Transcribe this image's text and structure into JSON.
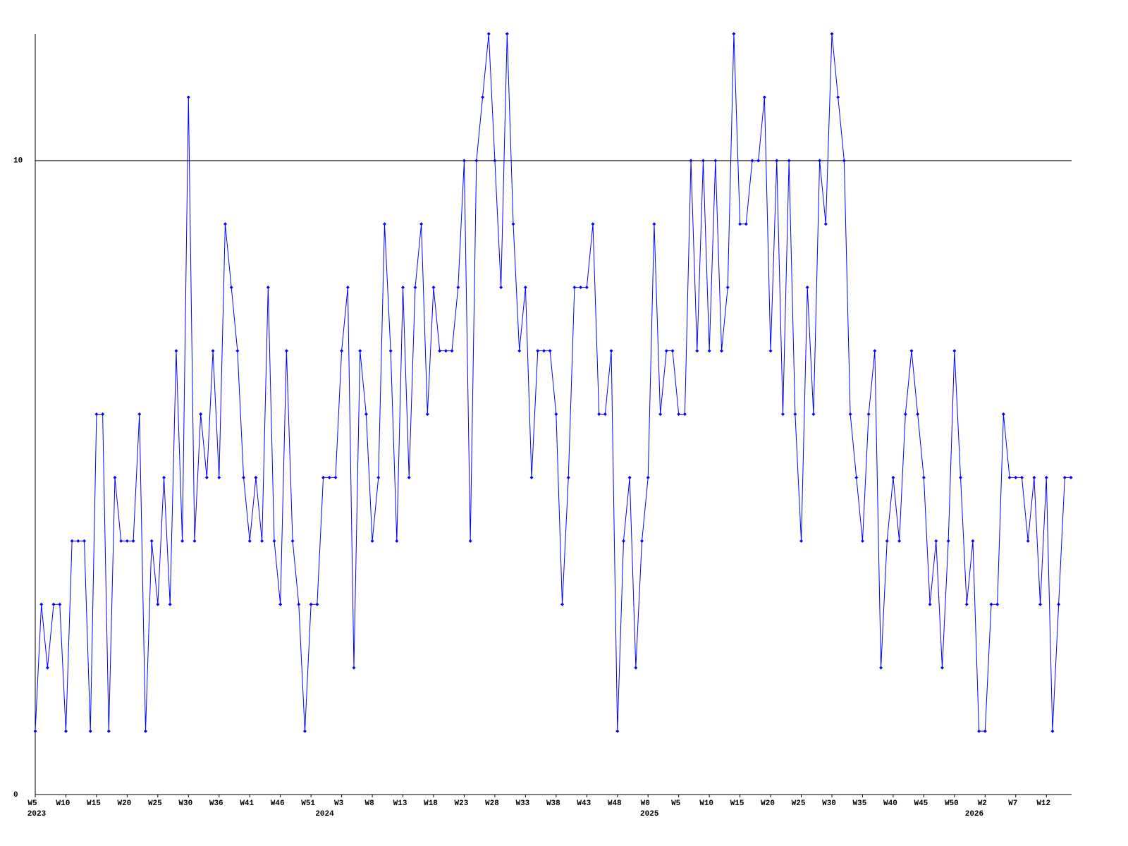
{
  "chart_data": {
    "type": "line",
    "categories": [
      "W5",
      null,
      null,
      null,
      null,
      "W10",
      null,
      null,
      null,
      null,
      "W15",
      null,
      null,
      null,
      null,
      "W20",
      null,
      null,
      null,
      null,
      "W25",
      null,
      null,
      null,
      null,
      "W30",
      null,
      null,
      null,
      null,
      "W36",
      null,
      null,
      null,
      null,
      "W41",
      null,
      null,
      null,
      null,
      "W46",
      null,
      null,
      null,
      null,
      "W51",
      null,
      null,
      null,
      null,
      "W3",
      null,
      null,
      null,
      null,
      "W8",
      null,
      null,
      null,
      null,
      "W13",
      null,
      null,
      null,
      null,
      "W18",
      null,
      null,
      null,
      null,
      "W23",
      null,
      null,
      null,
      null,
      "W28",
      null,
      null,
      null,
      null,
      "W33",
      null,
      null,
      null,
      null,
      "W38",
      null,
      null,
      null,
      null,
      "W43",
      null,
      null,
      null,
      null,
      "W48",
      null,
      null,
      null,
      null,
      "W0",
      null,
      null,
      null,
      null,
      "W5",
      null,
      null,
      null,
      null,
      "W10",
      null,
      null,
      null,
      null,
      "W15",
      null,
      null,
      null,
      null,
      "W20",
      null,
      null,
      null,
      null,
      "W25",
      null,
      null,
      null,
      null,
      "W30",
      null,
      null,
      null,
      null,
      "W35",
      null,
      null,
      null,
      null,
      "W40",
      null,
      null,
      null,
      null,
      "W45",
      null,
      null,
      null,
      null,
      "W50",
      null,
      null,
      null,
      null,
      "W2",
      null,
      null,
      null,
      null,
      "W7",
      null,
      null,
      null,
      null,
      "W12",
      null,
      null,
      null,
      null
    ],
    "category_years": [
      "2023",
      null,
      null,
      null,
      null,
      null,
      null,
      null,
      null,
      null,
      null,
      null,
      null,
      null,
      null,
      null,
      null,
      null,
      null,
      null,
      null,
      null,
      null,
      null,
      null,
      null,
      null,
      null,
      null,
      null,
      null,
      null,
      null,
      null,
      null,
      null,
      null,
      null,
      null,
      null,
      null,
      null,
      null,
      null,
      null,
      null,
      null,
      "2024",
      null,
      null,
      null,
      null,
      null,
      null,
      null,
      null,
      null,
      null,
      null,
      null,
      null,
      null,
      null,
      null,
      null,
      null,
      null,
      null,
      null,
      null,
      null,
      null,
      null,
      null,
      null,
      null,
      null,
      null,
      null,
      null,
      null,
      null,
      null,
      null,
      null,
      null,
      null,
      null,
      null,
      null,
      null,
      null,
      null,
      null,
      null,
      null,
      null,
      null,
      null,
      null,
      "2025",
      null,
      null,
      null,
      null,
      null,
      null,
      null,
      null,
      null,
      null,
      null,
      null,
      null,
      null,
      null,
      null,
      null,
      null,
      null,
      null,
      null,
      null,
      null,
      null,
      null,
      null,
      null,
      null,
      null,
      null,
      null,
      null,
      null,
      null,
      null,
      null,
      null,
      null,
      null,
      null,
      null,
      null,
      null,
      null,
      null,
      null,
      null,
      null,
      null,
      null,
      null,
      null,
      "2026",
      null,
      null,
      null,
      null,
      null,
      null,
      null,
      null,
      null,
      null,
      null,
      null,
      null,
      null,
      null,
      null
    ],
    "values": [
      1,
      3,
      2,
      3,
      3,
      1,
      4,
      4,
      4,
      1,
      6,
      6,
      1,
      5,
      4,
      4,
      4,
      6,
      1,
      4,
      3,
      5,
      3,
      7,
      4,
      11,
      4,
      6,
      5,
      7,
      5,
      9,
      8,
      7,
      5,
      4,
      5,
      4,
      8,
      4,
      3,
      7,
      4,
      3,
      1,
      3,
      3,
      5,
      5,
      5,
      7,
      8,
      2,
      7,
      6,
      4,
      5,
      9,
      7,
      4,
      8,
      5,
      8,
      9,
      6,
      8,
      7,
      7,
      7,
      8,
      10,
      4,
      10,
      11,
      12,
      10,
      8,
      12,
      9,
      7,
      8,
      5,
      7,
      7,
      7,
      6,
      3,
      5,
      8,
      8,
      8,
      9,
      6,
      6,
      7,
      1,
      4,
      5,
      2,
      4,
      5,
      9,
      6,
      7,
      7,
      6,
      6,
      10,
      7,
      10,
      7,
      10,
      7,
      8,
      12,
      9,
      9,
      10,
      10,
      11,
      7,
      10,
      6,
      10,
      6,
      4,
      8,
      6,
      10,
      9,
      12,
      11,
      10,
      6,
      5,
      4,
      6,
      7,
      2,
      4,
      5,
      4,
      6,
      7,
      6,
      5,
      3,
      4,
      2,
      4,
      7,
      5,
      3,
      4,
      1,
      1,
      3,
      3,
      6,
      5,
      5,
      5,
      4,
      5,
      3,
      5,
      1,
      3,
      5,
      5
    ],
    "color": "#0000ff",
    "ylim": [
      0,
      12
    ],
    "yticks": [
      0,
      10
    ],
    "grid": true
  }
}
